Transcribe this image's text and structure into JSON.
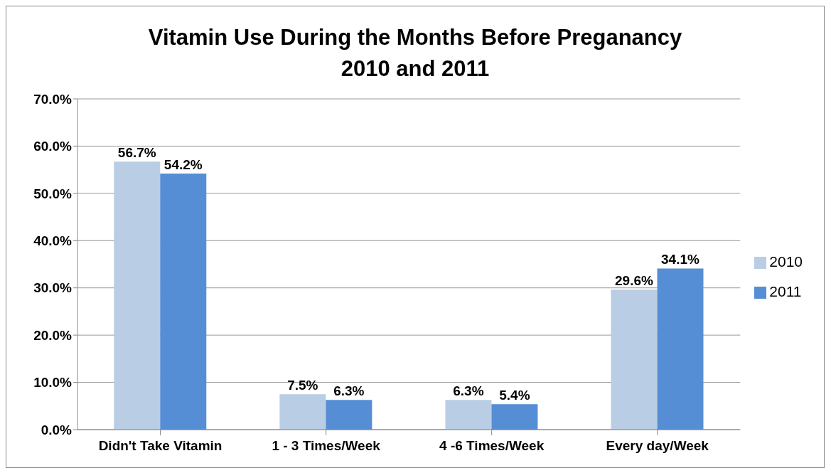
{
  "chart_data": {
    "type": "bar",
    "title": "Vitamin Use During the Months Before Preganancy\n2010 and 2011",
    "categories": [
      "Didn't Take Vitamin",
      "1 - 3 Times/Week",
      "4 -6 Times/Week",
      "Every day/Week"
    ],
    "series": [
      {
        "name": "2010",
        "color": "#b9cde5",
        "values": [
          56.7,
          7.5,
          6.3,
          29.6
        ],
        "value_labels": [
          "56.7%",
          "7.5%",
          "6.3%",
          "29.6%"
        ]
      },
      {
        "name": "2011",
        "color": "#558ed5",
        "values": [
          54.2,
          6.3,
          5.4,
          34.1
        ],
        "value_labels": [
          "54.2%",
          "6.3%",
          "5.4%",
          "34.1%"
        ]
      }
    ],
    "ylim": [
      0,
      70
    ],
    "yticks": [
      {
        "value": 0,
        "label": "0.0%"
      },
      {
        "value": 10,
        "label": "10.0%"
      },
      {
        "value": 20,
        "label": "20.0%"
      },
      {
        "value": 30,
        "label": "30.0%"
      },
      {
        "value": 40,
        "label": "40.0%"
      },
      {
        "value": 50,
        "label": "50.0%"
      },
      {
        "value": 60,
        "label": "60.0%"
      },
      {
        "value": 70,
        "label": "70.0%"
      }
    ],
    "grid": "y",
    "legend": "right"
  }
}
